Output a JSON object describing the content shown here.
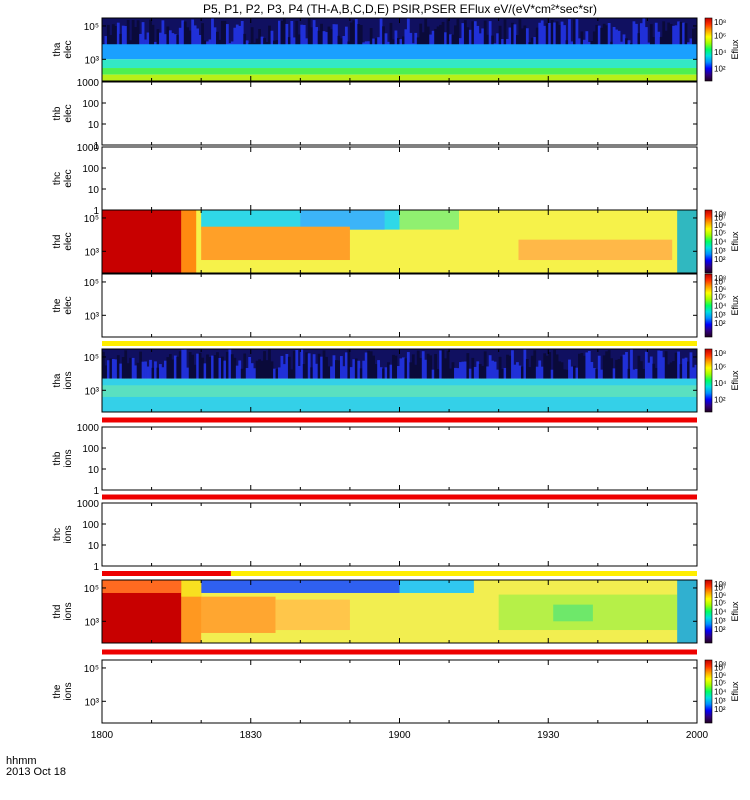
{
  "title": "P5, P1, P2, P3, P4 (TH-A,B,C,D,E) PSIR,PSER EFlux eV/(eV*cm²*sec*sr)",
  "colorbar_label": "Eflux",
  "x_axis": {
    "caption_line1": "hhmm",
    "caption_line2": "2013 Oct 18",
    "range_minutes": [
      0,
      120
    ],
    "ticks": [
      {
        "label": "1800",
        "minute": 0
      },
      {
        "label": "1830",
        "minute": 30
      },
      {
        "label": "1900",
        "minute": 60
      },
      {
        "label": "1930",
        "minute": 90
      },
      {
        "label": "2000",
        "minute": 120
      }
    ]
  },
  "chart_data": [
    {
      "type": "heatmap",
      "panel": "tha elec",
      "ylabel": [
        "tha",
        "elec"
      ],
      "ylim": [
        50,
        300000
      ],
      "yscale": "log",
      "y_ticks": [
        {
          "label": "10⁵",
          "value": 100000
        },
        {
          "label": "10³",
          "value": 1000
        }
      ],
      "has_data": true,
      "colorbar_ticks": [
        {
          "label": "10⁸",
          "frac": 1.0
        },
        {
          "label": "10⁶",
          "frac": 0.72
        },
        {
          "label": "10⁴",
          "frac": 0.46
        },
        {
          "label": "10²",
          "frac": 0.2
        }
      ],
      "layers": [
        {
          "ymin": 2000,
          "ymax": 300000,
          "color": "#0b10a8",
          "label": "noise"
        },
        {
          "ymin": 1000,
          "ymax": 8000,
          "color": "#1aa0ff"
        },
        {
          "ymin": 300,
          "ymax": 1000,
          "color": "#33e8c6"
        },
        {
          "ymin": 120,
          "ymax": 300,
          "color": "#4ef050"
        },
        {
          "ymin": 50,
          "ymax": 120,
          "color": "#b8f018"
        }
      ],
      "segments": []
    },
    {
      "type": "heatmap",
      "panel": "thb elec",
      "ylabel": [
        "thb",
        "elec"
      ],
      "ylim": [
        1,
        1000
      ],
      "yscale": "log",
      "y_ticks": [
        {
          "label": "1000",
          "value": 1000
        },
        {
          "label": "100",
          "value": 100
        },
        {
          "label": "10",
          "value": 10
        },
        {
          "label": "1",
          "value": 1
        }
      ],
      "has_data": false,
      "colorbar_ticks": [],
      "layers": [],
      "segments": []
    },
    {
      "type": "heatmap",
      "panel": "thc elec",
      "ylabel": [
        "thc",
        "elec"
      ],
      "ylim": [
        1,
        1000
      ],
      "yscale": "log",
      "y_ticks": [
        {
          "label": "1000",
          "value": 1000
        },
        {
          "label": "100",
          "value": 100
        },
        {
          "label": "10",
          "value": 10
        },
        {
          "label": "1",
          "value": 1
        }
      ],
      "has_data": false,
      "colorbar_ticks": [],
      "layers": [],
      "segments": []
    },
    {
      "type": "heatmap",
      "panel": "thd elec",
      "ylabel": [
        "thd",
        "elec"
      ],
      "ylim": [
        50,
        300000
      ],
      "yscale": "log",
      "y_ticks": [
        {
          "label": "10⁵",
          "value": 100000
        },
        {
          "label": "10³",
          "value": 1000
        }
      ],
      "has_data": true,
      "colorbar_ticks": [
        {
          "label": "10⁸",
          "frac": 1.0
        },
        {
          "label": "10⁷",
          "frac": 0.88
        },
        {
          "label": "10⁶",
          "frac": 0.76
        },
        {
          "label": "10⁵",
          "frac": 0.64
        },
        {
          "label": "10⁴",
          "frac": 0.5
        },
        {
          "label": "10³",
          "frac": 0.36
        },
        {
          "label": "10²",
          "frac": 0.22
        }
      ],
      "layers": [
        {
          "ymin": 50,
          "ymax": 300000,
          "color": "#f6f24a"
        },
        {
          "ymin": 20000,
          "ymax": 300000,
          "color": "#2fd8e8",
          "x0": 20,
          "x1": 60
        },
        {
          "ymin": 20000,
          "ymax": 300000,
          "color": "#3cb4f8",
          "x0": 40,
          "x1": 57
        },
        {
          "ymin": 20000,
          "ymax": 300000,
          "color": "#90f070",
          "x0": 60,
          "x1": 72
        },
        {
          "ymin": 300,
          "ymax": 30000,
          "color": "#ffa028",
          "x0": 20,
          "x1": 50
        },
        {
          "ymin": 300,
          "ymax": 5000,
          "color": "#ffb848",
          "x0": 84,
          "x1": 115
        }
      ],
      "segments": [
        {
          "x0": 0,
          "x1": 16,
          "ymin": 50,
          "ymax": 300000,
          "color": "#c80000"
        },
        {
          "x0": 16,
          "x1": 19,
          "ymin": 50,
          "ymax": 300000,
          "color": "#ff8a10"
        },
        {
          "x0": 116,
          "x1": 120,
          "ymin": 50,
          "ymax": 300000,
          "color": "#30b8c0"
        }
      ]
    },
    {
      "type": "heatmap",
      "panel": "the elec",
      "ylabel": [
        "the",
        "elec"
      ],
      "ylim": [
        50,
        300000
      ],
      "yscale": "log",
      "y_ticks": [
        {
          "label": "10⁵",
          "value": 100000
        },
        {
          "label": "10³",
          "value": 1000
        }
      ],
      "has_data": false,
      "colorbar_ticks": [
        {
          "label": "10⁸",
          "frac": 1.0
        },
        {
          "label": "10⁷",
          "frac": 0.88
        },
        {
          "label": "10⁶",
          "frac": 0.76
        },
        {
          "label": "10⁵",
          "frac": 0.64
        },
        {
          "label": "10⁴",
          "frac": 0.5
        },
        {
          "label": "10³",
          "frac": 0.36
        },
        {
          "label": "10²",
          "frac": 0.22
        }
      ],
      "layers": [],
      "segments": []
    },
    {
      "type": "heatmap",
      "panel": "tha ions",
      "ylabel": [
        "tha",
        "ions"
      ],
      "ylim": [
        50,
        300000
      ],
      "yscale": "log",
      "y_ticks": [
        {
          "label": "10⁵",
          "value": 100000
        },
        {
          "label": "10³",
          "value": 1000
        }
      ],
      "has_data": true,
      "colorbar_ticks": [
        {
          "label": "10⁸",
          "frac": 1.0
        },
        {
          "label": "10⁶",
          "frac": 0.72
        },
        {
          "label": "10⁴",
          "frac": 0.46
        },
        {
          "label": "10²",
          "frac": 0.2
        }
      ],
      "layers": [
        {
          "ymin": 5000,
          "ymax": 300000,
          "color": "#0b10a8",
          "label": "noise"
        },
        {
          "ymin": 50,
          "ymax": 5000,
          "color": "#34d0e8"
        },
        {
          "ymin": 400,
          "ymax": 2000,
          "color": "#5ae0c0"
        }
      ],
      "segments": []
    },
    {
      "type": "heatmap",
      "panel": "thb ions",
      "ylabel": [
        "thb",
        "ions"
      ],
      "ylim": [
        1,
        1000
      ],
      "yscale": "log",
      "y_ticks": [
        {
          "label": "1000",
          "value": 1000
        },
        {
          "label": "100",
          "value": 100
        },
        {
          "label": "10",
          "value": 10
        },
        {
          "label": "1",
          "value": 1
        }
      ],
      "has_data": false,
      "colorbar_ticks": [],
      "layers": [],
      "segments": []
    },
    {
      "type": "heatmap",
      "panel": "thc ions",
      "ylabel": [
        "thc",
        "ions"
      ],
      "ylim": [
        1,
        1000
      ],
      "yscale": "log",
      "y_ticks": [
        {
          "label": "1000",
          "value": 1000
        },
        {
          "label": "100",
          "value": 100
        },
        {
          "label": "10",
          "value": 10
        },
        {
          "label": "1",
          "value": 1
        }
      ],
      "has_data": false,
      "colorbar_ticks": [],
      "layers": [],
      "segments": []
    },
    {
      "type": "heatmap",
      "panel": "thd ions",
      "ylabel": [
        "thd",
        "ions"
      ],
      "ylim": [
        50,
        300000
      ],
      "yscale": "log",
      "y_ticks": [
        {
          "label": "10⁵",
          "value": 100000
        },
        {
          "label": "10³",
          "value": 1000
        }
      ],
      "has_data": true,
      "colorbar_ticks": [
        {
          "label": "10⁸",
          "frac": 1.0
        },
        {
          "label": "10⁷",
          "frac": 0.88
        },
        {
          "label": "10⁶",
          "frac": 0.76
        },
        {
          "label": "10⁵",
          "frac": 0.64
        },
        {
          "label": "10⁴",
          "frac": 0.5
        },
        {
          "label": "10³",
          "frac": 0.36
        },
        {
          "label": "10²",
          "frac": 0.22
        }
      ],
      "layers": [
        {
          "ymin": 50,
          "ymax": 300000,
          "color": "#f2ee50"
        },
        {
          "ymin": 50000,
          "ymax": 300000,
          "color": "#2f60f0",
          "x0": 20,
          "x1": 60
        },
        {
          "ymin": 50000,
          "ymax": 300000,
          "color": "#30c8f0",
          "x0": 60,
          "x1": 75
        },
        {
          "ymin": 200,
          "ymax": 30000,
          "color": "#ffa630",
          "x0": 19,
          "x1": 35
        },
        {
          "ymin": 300,
          "ymax": 20000,
          "color": "#ffc64a",
          "x0": 35,
          "x1": 50
        },
        {
          "ymin": 300,
          "ymax": 40000,
          "color": "#b6f048",
          "x0": 80,
          "x1": 116
        },
        {
          "ymin": 1000,
          "ymax": 10000,
          "color": "#6ee86a",
          "x0": 91,
          "x1": 99
        }
      ],
      "segments": [
        {
          "x0": 0,
          "x1": 16,
          "ymin": 50,
          "ymax": 300000,
          "color": "#c80000"
        },
        {
          "x0": 0,
          "x1": 16,
          "ymin": 50000,
          "ymax": 300000,
          "color": "#ff6a20"
        },
        {
          "x0": 16,
          "x1": 20,
          "ymin": 50,
          "ymax": 300000,
          "color": "#ff9820"
        },
        {
          "x0": 16,
          "x1": 20,
          "ymin": 30000,
          "ymax": 300000,
          "color": "#f8e020"
        },
        {
          "x0": 116,
          "x1": 120,
          "ymin": 50,
          "ymax": 300000,
          "color": "#30b0d0"
        }
      ]
    },
    {
      "type": "heatmap",
      "panel": "the ions",
      "ylabel": [
        "the",
        "ions"
      ],
      "ylim": [
        50,
        300000
      ],
      "yscale": "log",
      "y_ticks": [
        {
          "label": "10⁵",
          "value": 100000
        },
        {
          "label": "10³",
          "value": 1000
        }
      ],
      "has_data": false,
      "colorbar_ticks": [
        {
          "label": "10⁸",
          "frac": 1.0
        },
        {
          "label": "10⁷",
          "frac": 0.88
        },
        {
          "label": "10⁶",
          "frac": 0.76
        },
        {
          "label": "10⁵",
          "frac": 0.64
        },
        {
          "label": "10⁴",
          "frac": 0.5
        },
        {
          "label": "10³",
          "frac": 0.36
        },
        {
          "label": "10²",
          "frac": 0.22
        }
      ],
      "layers": [],
      "segments": []
    }
  ],
  "mode_bars": [
    {
      "after_panel": "the elec",
      "x0": 0,
      "x1": 120,
      "color": "#ffee00"
    },
    {
      "after_panel": "tha ions",
      "x0": 0,
      "x1": 120,
      "color": "#ee0000"
    },
    {
      "after_panel": "thb ions",
      "x0": 0,
      "x1": 120,
      "color": "#ee0000"
    },
    {
      "after_panel": "thc ions",
      "x0": 0,
      "x1": 26,
      "color": "#ee0000"
    },
    {
      "after_panel": "thc ions",
      "x0": 26,
      "x1": 120,
      "color": "#ffee00"
    },
    {
      "after_panel": "thd ions",
      "x0": 0,
      "x1": 120,
      "color": "#ee0000"
    }
  ],
  "colorbar_colors": [
    "#200020",
    "#300080",
    "#0000ff",
    "#0090ff",
    "#00e0e0",
    "#00ff60",
    "#a0ff00",
    "#ffff00",
    "#ffa000",
    "#ff3000",
    "#c00000"
  ]
}
